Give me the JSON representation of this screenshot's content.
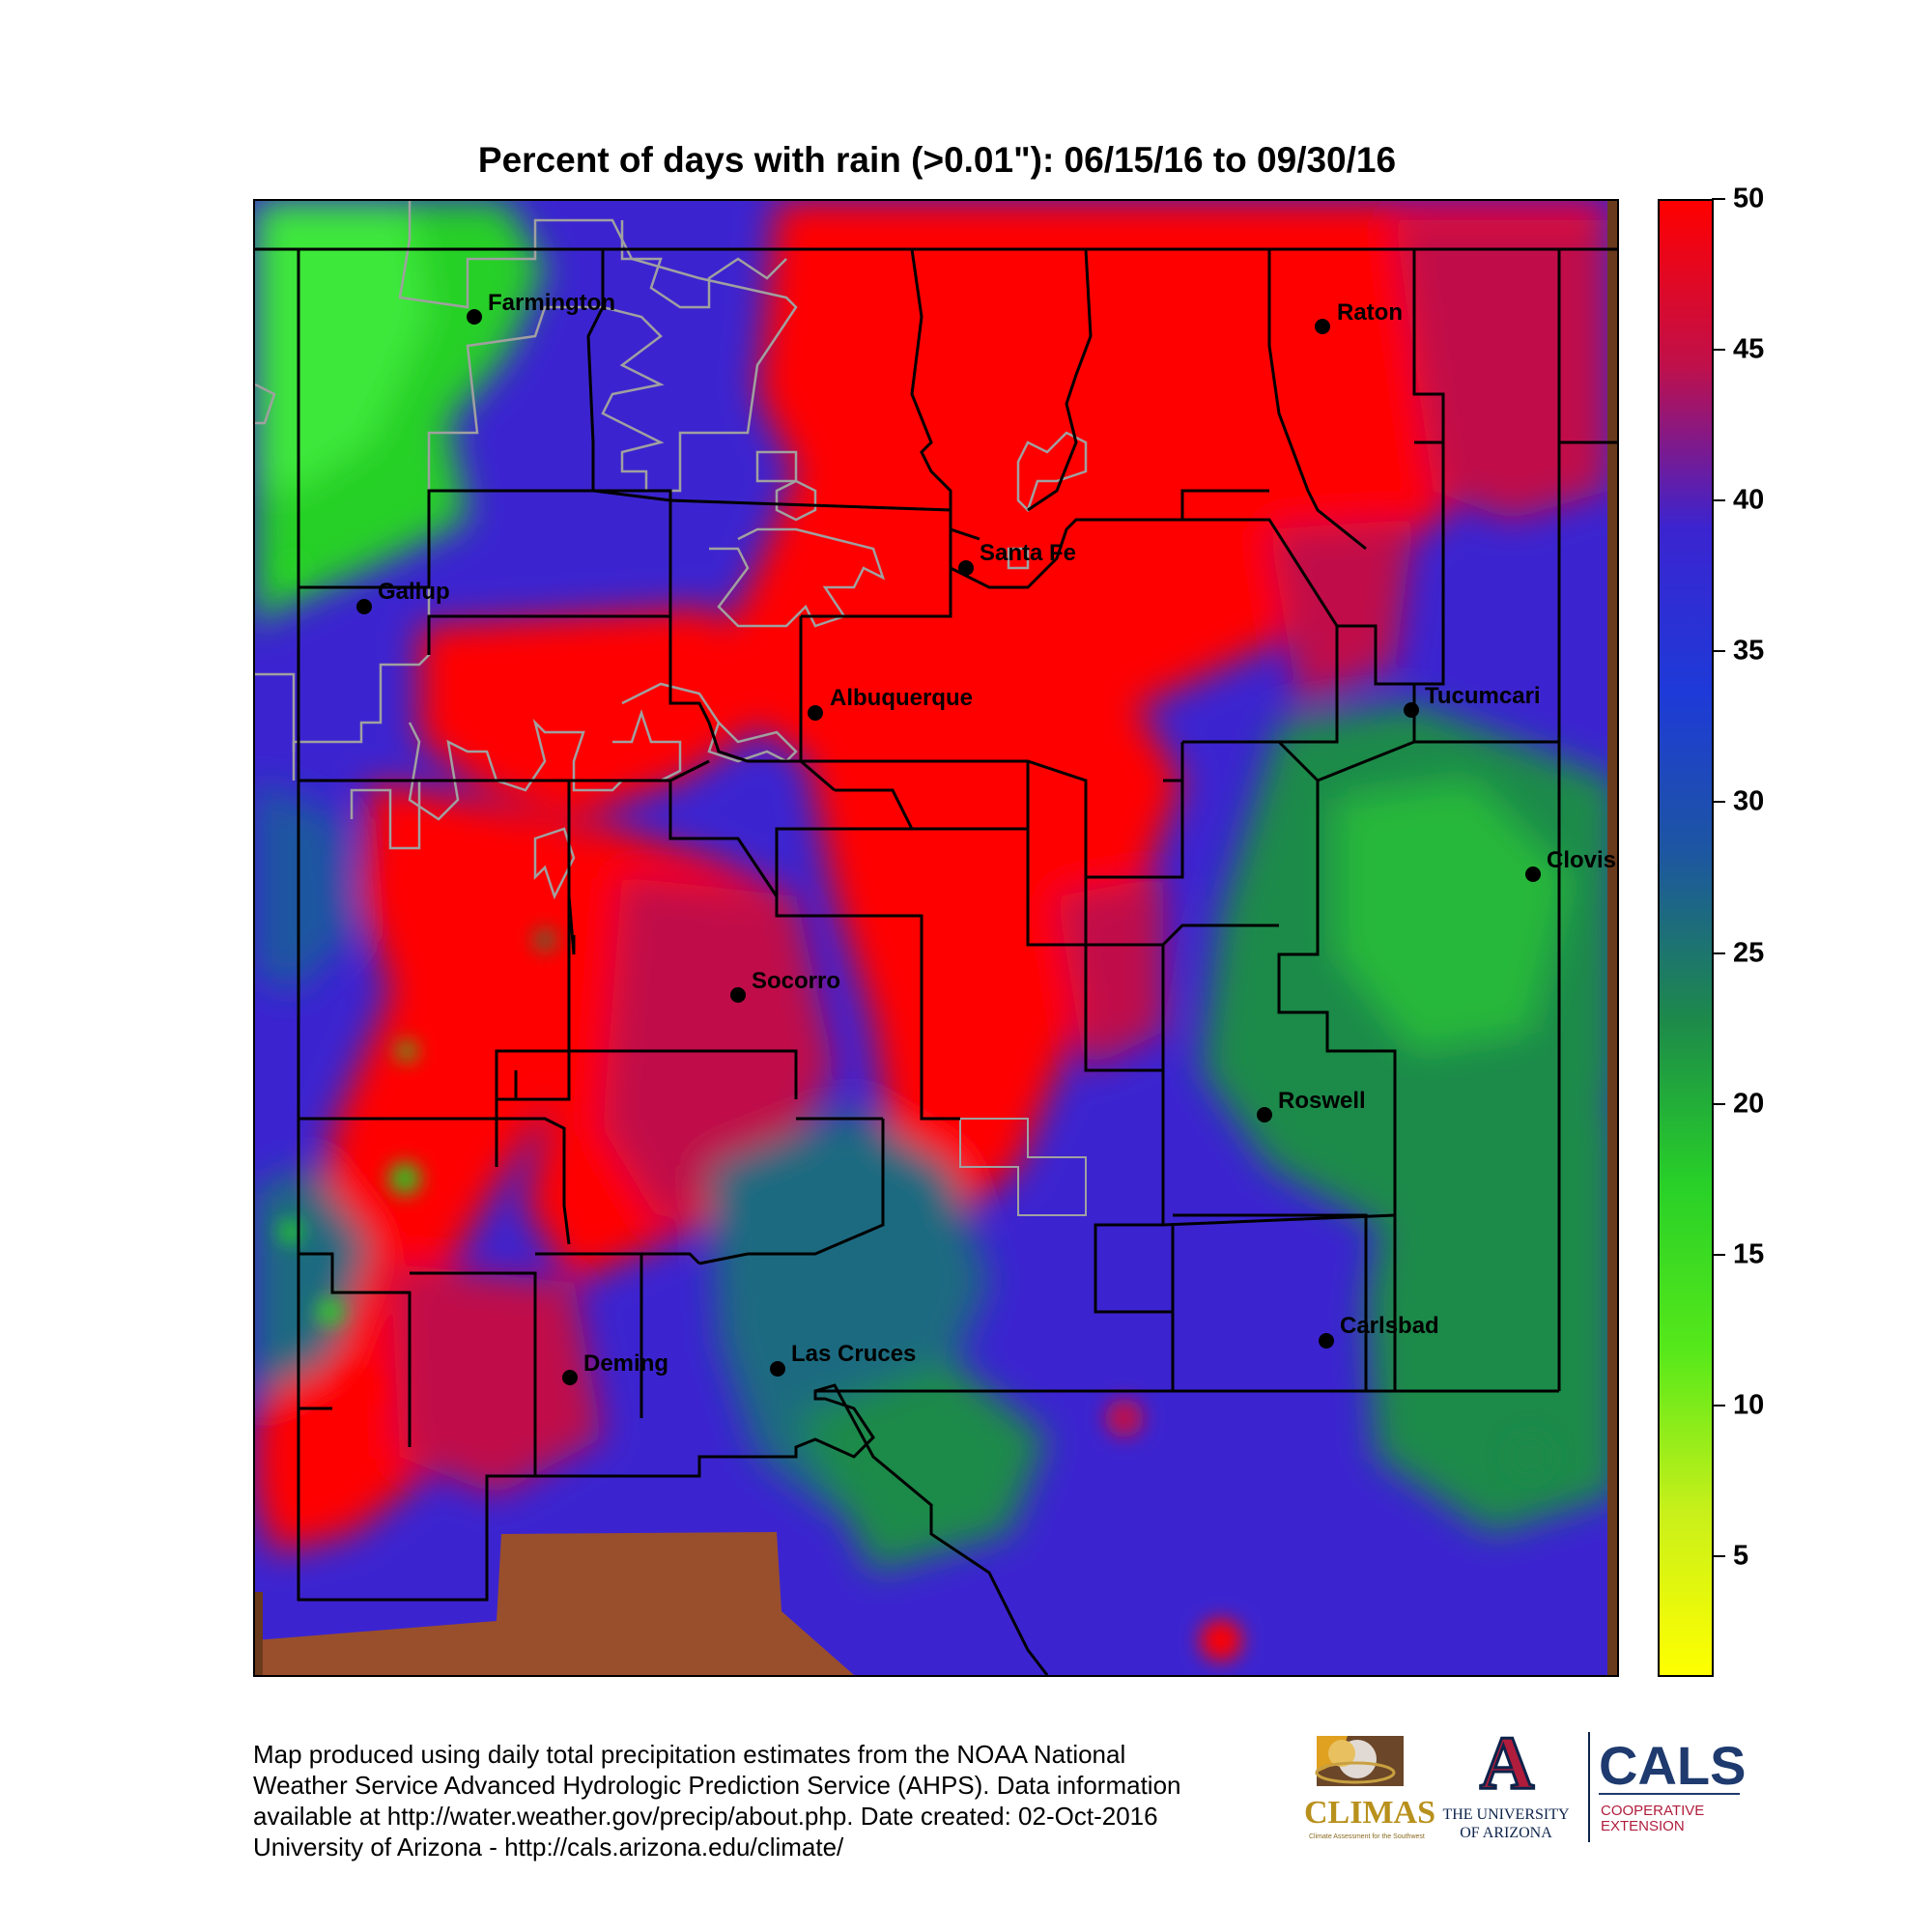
{
  "title": "Percent of days with rain (>0.01\"): 06/15/16 to 09/30/16",
  "chart_data": {
    "type": "heatmap",
    "title": "Percent of days with rain (>0.01\"): 06/15/16 to 09/30/16",
    "colorbar": {
      "ticks": [
        50,
        45,
        40,
        35,
        30,
        25,
        20,
        15,
        10,
        5
      ],
      "range": [
        1,
        50
      ],
      "colors": [
        "#ff0000",
        "#c0104a",
        "#3b24d0",
        "#1e3ad8",
        "#1d57a0",
        "#1d8a4a",
        "#28d028",
        "#55e81a",
        "#c8f01a",
        "#ffff00"
      ]
    }
  },
  "cities": [
    {
      "name": "Farmington"
    },
    {
      "name": "Raton"
    },
    {
      "name": "Santa Fe"
    },
    {
      "name": "Gallup"
    },
    {
      "name": "Albuquerque"
    },
    {
      "name": "Tucumcari"
    },
    {
      "name": "Clovis"
    },
    {
      "name": "Socorro"
    },
    {
      "name": "Roswell"
    },
    {
      "name": "Carlsbad"
    },
    {
      "name": "Deming"
    },
    {
      "name": "Las Cruces"
    }
  ],
  "footer": {
    "line1": "Map produced using daily total precipitation estimates from the NOAA National",
    "line2": "Weather Service Advanced Hydrologic Prediction Service (AHPS). Data information",
    "line3": "available at http://water.weather.gov/precip/about.php. Date created: 02-Oct-2016",
    "line4": "University of Arizona - http://cals.arizona.edu/climate/"
  },
  "logos": {
    "climas": "CLIMAS",
    "climas_sub": "Climate Assessment for the Southwest",
    "ua_letter": "A",
    "ua_line1": "THE UNIVERSITY",
    "ua_line2": "OF ARIZONA",
    "cals": "CALS",
    "cals_line1": "COOPERATIVE",
    "cals_line2": "EXTENSION"
  },
  "colors": {
    "red": "#ff0000",
    "magenta": "#c0104a",
    "blue": "#3b24d0",
    "green": "#28d028",
    "brown": "#9a4f2c",
    "county_line": "#000000",
    "tribal_line": "#a0a0a0",
    "ua_red": "#b01c3c",
    "ua_navy": "#0c234b",
    "climas_gold": "#b8901c"
  }
}
